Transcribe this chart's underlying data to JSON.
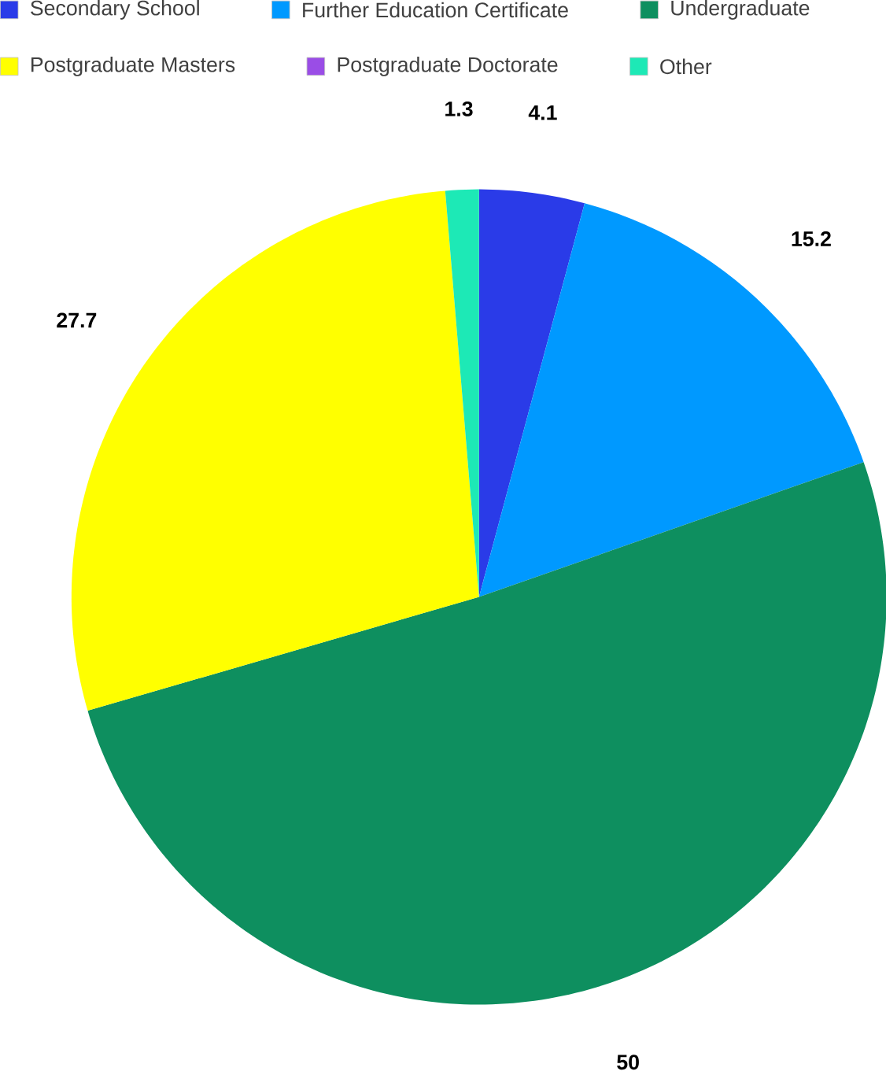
{
  "chart_data": {
    "type": "pie",
    "categories": [
      "Secondary School",
      "Further Education Certificate",
      "Undergraduate",
      "Postgraduate Masters",
      "Postgraduate Doctorate",
      "Other"
    ],
    "values": [
      4.1,
      15.2,
      50,
      27.7,
      0,
      1.3
    ],
    "colors": [
      "#2a3be8",
      "#0099ff",
      "#0e8f5f",
      "#ffff00",
      "#9a4de6",
      "#1de9b6"
    ],
    "value_labels": [
      "4.1",
      "15.2",
      "50",
      "27.7",
      null,
      "1.3"
    ],
    "legend": "top"
  }
}
